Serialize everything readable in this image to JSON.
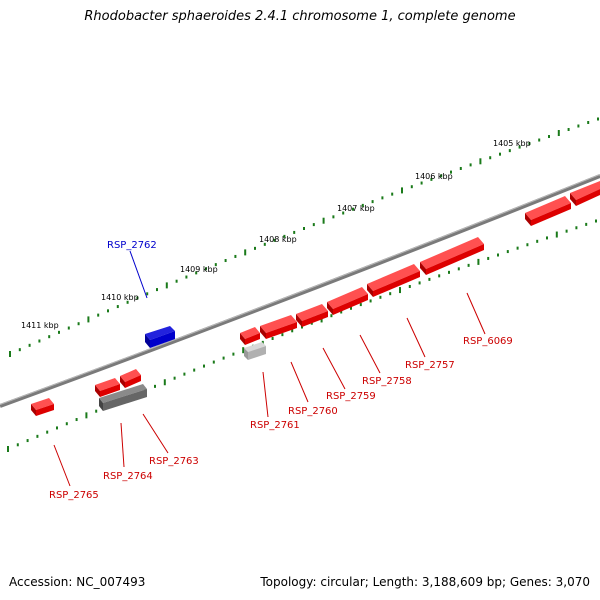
{
  "title": "Rhodobacter sphaeroides 2.4.1 chromosome 1, complete genome",
  "footer": {
    "accession": "Accession: NC_007493",
    "summary": "Topology: circular; Length: 3,188,609 bp; Genes: 3,070"
  },
  "scale_labels": [
    "1405 kbp",
    "1406 kbp",
    "1407 kbp",
    "1408 kbp",
    "1409 kbp",
    "1410 kbp",
    "1411 kbp"
  ],
  "genes": [
    {
      "id": "RSP_2762",
      "color": "#0000cc"
    },
    {
      "id": "RSP_6069",
      "color": "#cc0000"
    },
    {
      "id": "RSP_2757",
      "color": "#cc0000"
    },
    {
      "id": "RSP_2758",
      "color": "#cc0000"
    },
    {
      "id": "RSP_2759",
      "color": "#cc0000"
    },
    {
      "id": "RSP_2760",
      "color": "#cc0000"
    },
    {
      "id": "RSP_2761",
      "color": "#cc0000"
    },
    {
      "id": "RSP_2763",
      "color": "#cc0000"
    },
    {
      "id": "RSP_2764",
      "color": "#cc0000"
    },
    {
      "id": "RSP_2765",
      "color": "#cc0000"
    }
  ]
}
